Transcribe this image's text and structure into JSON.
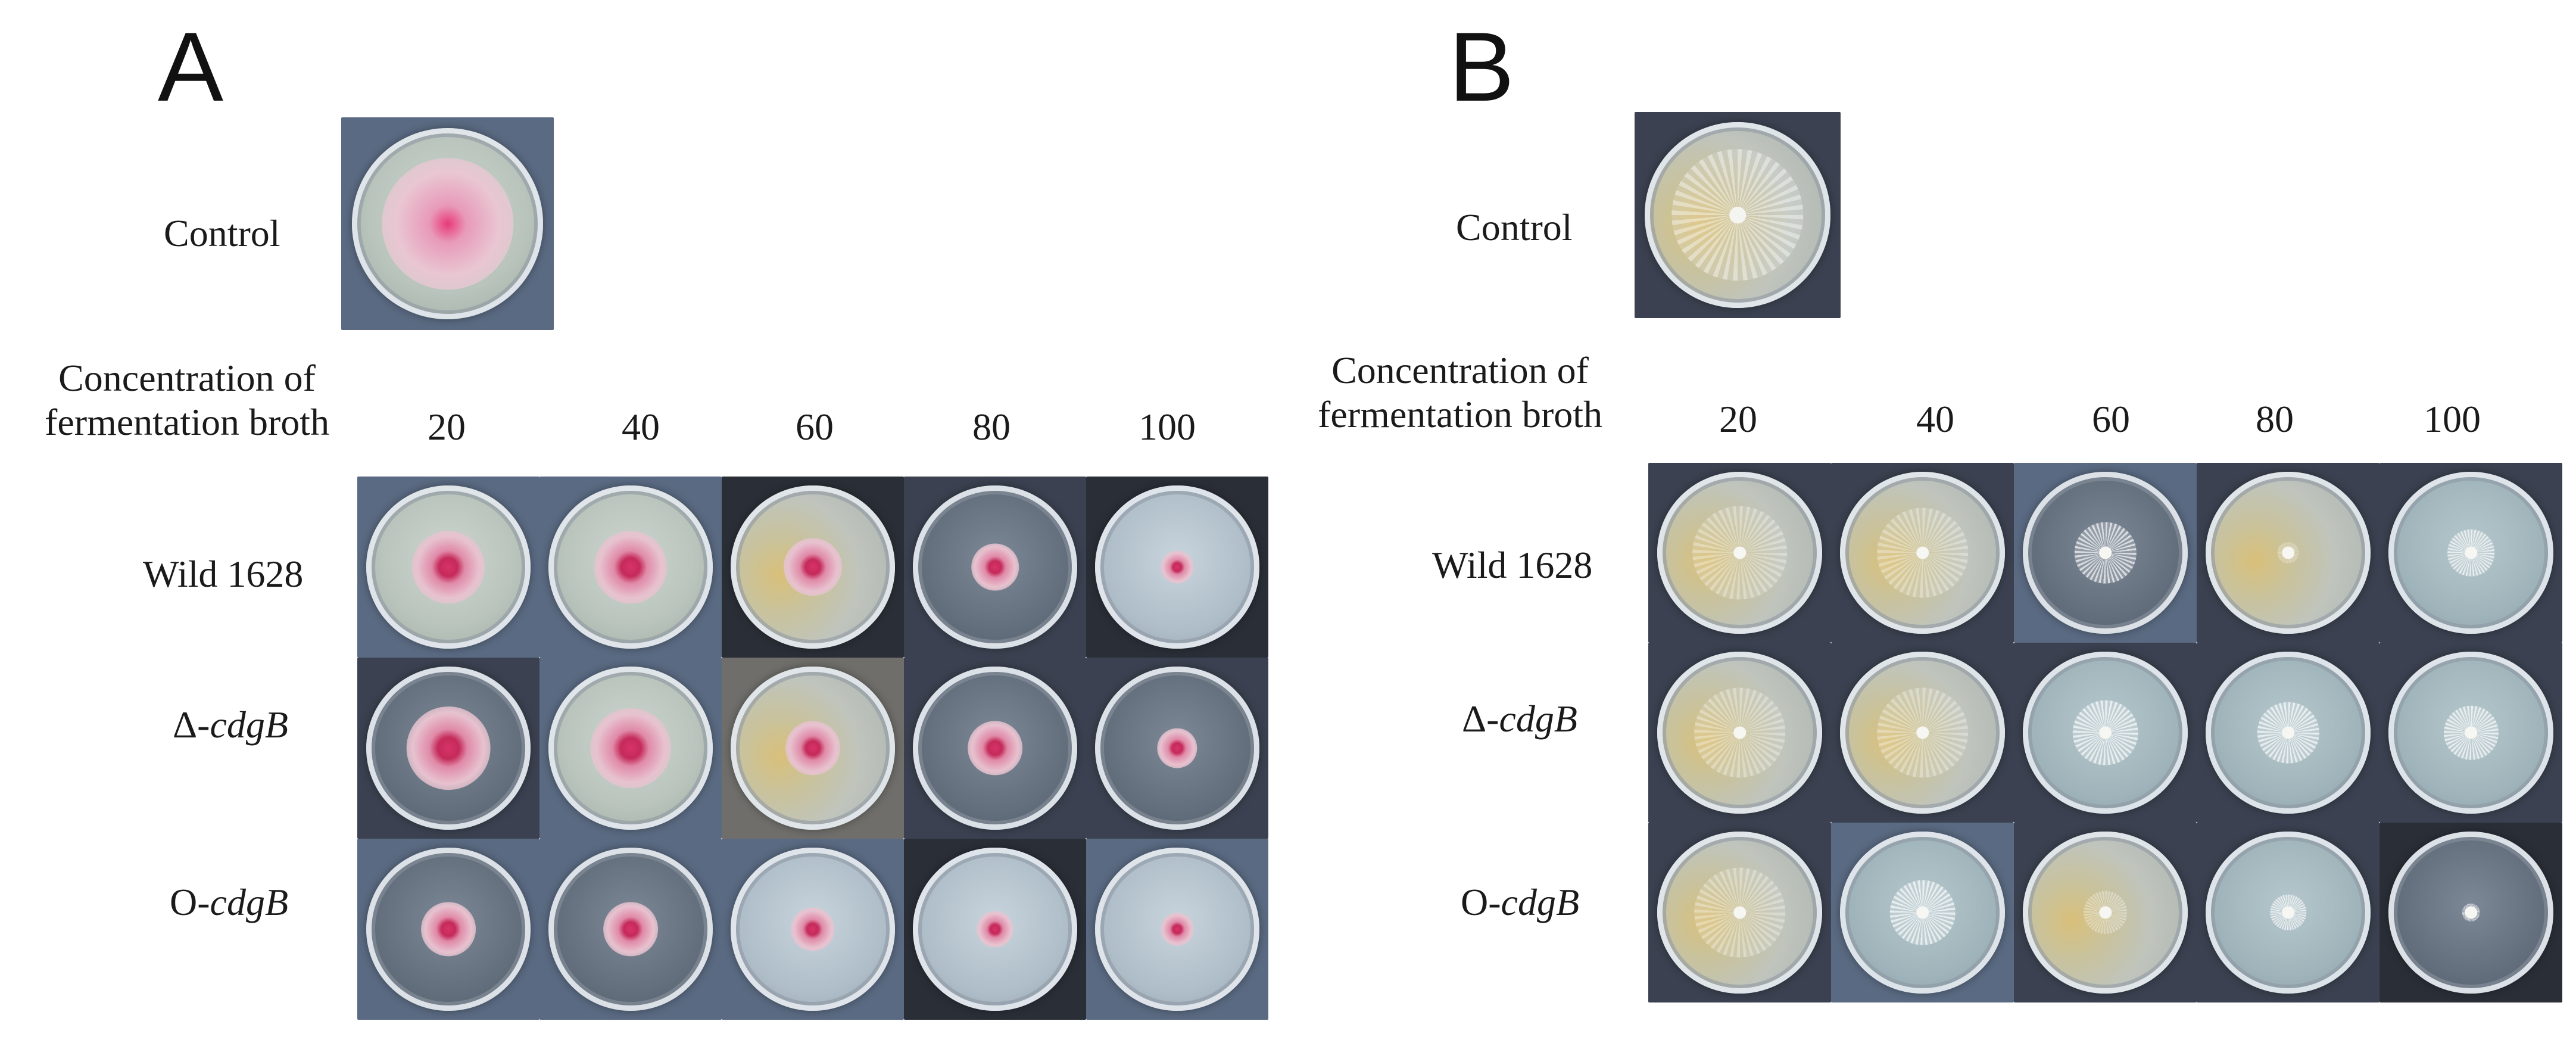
{
  "panels": [
    {
      "letter": "A",
      "control_label": "Control",
      "concentration_label_line1": "Concentration of",
      "concentration_label_line2": "fermentation broth",
      "concentrations": [
        "20",
        "40",
        "60",
        "80",
        "100"
      ],
      "rows": [
        {
          "prefix": "Wild 1628",
          "gene": ""
        },
        {
          "prefix": "Δ-",
          "gene": "cdgB"
        },
        {
          "prefix": "O-",
          "gene": "cdgB"
        }
      ],
      "colony_color": "#d8336a",
      "colony_sizes": [
        [
          0.4,
          0.4,
          0.32,
          0.26,
          0.18
        ],
        [
          0.46,
          0.44,
          0.3,
          0.3,
          0.22
        ],
        [
          0.3,
          0.3,
          0.24,
          0.2,
          0.18
        ]
      ],
      "control_colony_size": 0.62
    },
    {
      "letter": "B",
      "control_label": "Control",
      "concentration_label_line1": "Concentration of",
      "concentration_label_line2": "fermentation broth",
      "concentrations": [
        "20",
        "40",
        "60",
        "80",
        "100"
      ],
      "rows": [
        {
          "prefix": "Wild 1628",
          "gene": ""
        },
        {
          "prefix": "Δ-",
          "gene": "cdgB"
        },
        {
          "prefix": "O-",
          "gene": "cdgB"
        }
      ],
      "colony_color": "#f2f2f2",
      "colony_sizes": [
        [
          0.52,
          0.5,
          0.34,
          0.12,
          0.26
        ],
        [
          0.5,
          0.5,
          0.36,
          0.34,
          0.3
        ],
        [
          0.5,
          0.36,
          0.24,
          0.2,
          0.1
        ]
      ],
      "control_colony_size": 0.64
    }
  ]
}
